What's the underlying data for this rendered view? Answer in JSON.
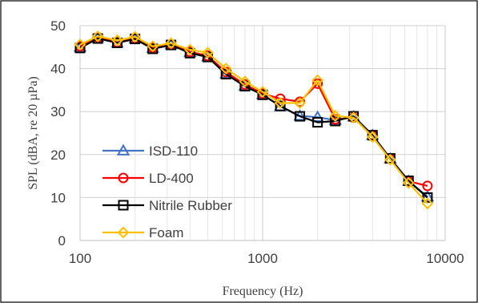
{
  "chart_data": {
    "type": "line",
    "xlabel": "Frequency (Hz)",
    "ylabel": "SPL (dBA, re 20 µPa)",
    "x_scale": "log",
    "xlim": [
      100,
      10000
    ],
    "ylim": [
      0,
      50
    ],
    "x_ticks": [
      100,
      1000,
      10000
    ],
    "x_tick_labels": [
      "100",
      "1000",
      "10000"
    ],
    "y_ticks": [
      0,
      10,
      20,
      30,
      40,
      50
    ],
    "y_tick_labels": [
      "0",
      "10",
      "20",
      "30",
      "40",
      "50"
    ],
    "grid": "major and minor",
    "legend_position": "bottom-left",
    "x": [
      100,
      125,
      160,
      200,
      250,
      315,
      400,
      500,
      630,
      800,
      1000,
      1250,
      1600,
      2000,
      2500,
      3150,
      4000,
      5000,
      6300,
      8000
    ],
    "series": [
      {
        "name": "ISD-110",
        "color": "#4472C4",
        "marker": "triangle",
        "values": [
          45.0,
          47.2,
          46.0,
          47.0,
          44.8,
          45.6,
          43.8,
          42.8,
          38.8,
          36.0,
          34.0,
          31.2,
          29.0,
          28.7,
          28.0,
          28.8,
          24.5,
          19.0,
          13.8,
          10.2
        ]
      },
      {
        "name": "LD-400",
        "color": "#FF0000",
        "marker": "circle",
        "values": [
          45.2,
          47.3,
          46.1,
          47.0,
          44.9,
          45.6,
          43.9,
          43.0,
          39.2,
          36.3,
          34.2,
          33.0,
          32.3,
          36.5,
          28.2,
          28.6,
          24.5,
          19.0,
          13.8,
          12.7
        ]
      },
      {
        "name": "Nitrile Rubber",
        "color": "#000000",
        "marker": "square",
        "values": [
          44.8,
          47.0,
          46.0,
          46.9,
          44.6,
          45.5,
          43.6,
          42.7,
          38.7,
          35.9,
          33.9,
          31.3,
          28.9,
          27.5,
          27.8,
          28.9,
          24.5,
          19.1,
          13.9,
          10.0
        ]
      },
      {
        "name": "Foam",
        "color": "#FFC000",
        "marker": "diamond",
        "values": [
          45.6,
          47.5,
          46.6,
          47.4,
          45.2,
          45.9,
          44.4,
          43.7,
          40.0,
          37.0,
          34.6,
          32.0,
          32.0,
          37.3,
          29.0,
          28.6,
          24.1,
          18.8,
          13.4,
          8.6
        ]
      }
    ]
  }
}
